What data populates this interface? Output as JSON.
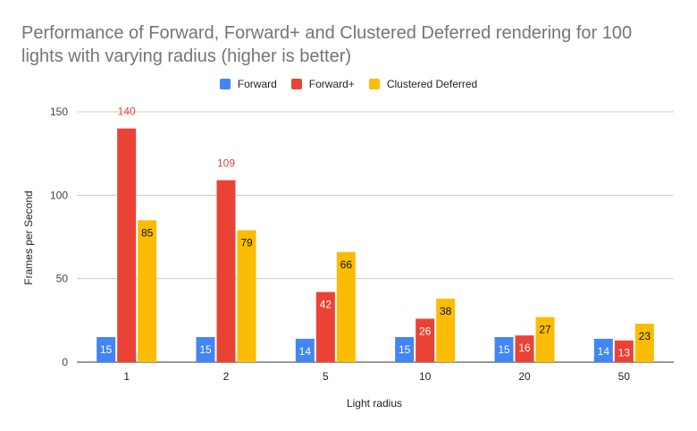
{
  "chart_data": {
    "type": "bar",
    "title": "Performance of Forward, Forward+ and Clustered Deferred rendering for 100 lights with varying radius (higher is better)",
    "xlabel": "Light radius",
    "ylabel": "Frames per Second",
    "categories": [
      "1",
      "2",
      "5",
      "10",
      "20",
      "50"
    ],
    "series": [
      {
        "name": "Forward",
        "color": "#4285f4",
        "values": [
          15,
          15,
          14,
          15,
          15,
          14
        ]
      },
      {
        "name": "Forward+",
        "color": "#ea4335",
        "values": [
          140,
          109,
          42,
          26,
          16,
          13
        ]
      },
      {
        "name": "Clustered Deferred",
        "color": "#fbbc04",
        "values": [
          85,
          79,
          66,
          38,
          27,
          23
        ]
      }
    ],
    "ylim": [
      0,
      150
    ],
    "yticks": [
      0,
      50,
      100,
      150
    ],
    "grid": true,
    "legend": "top"
  }
}
